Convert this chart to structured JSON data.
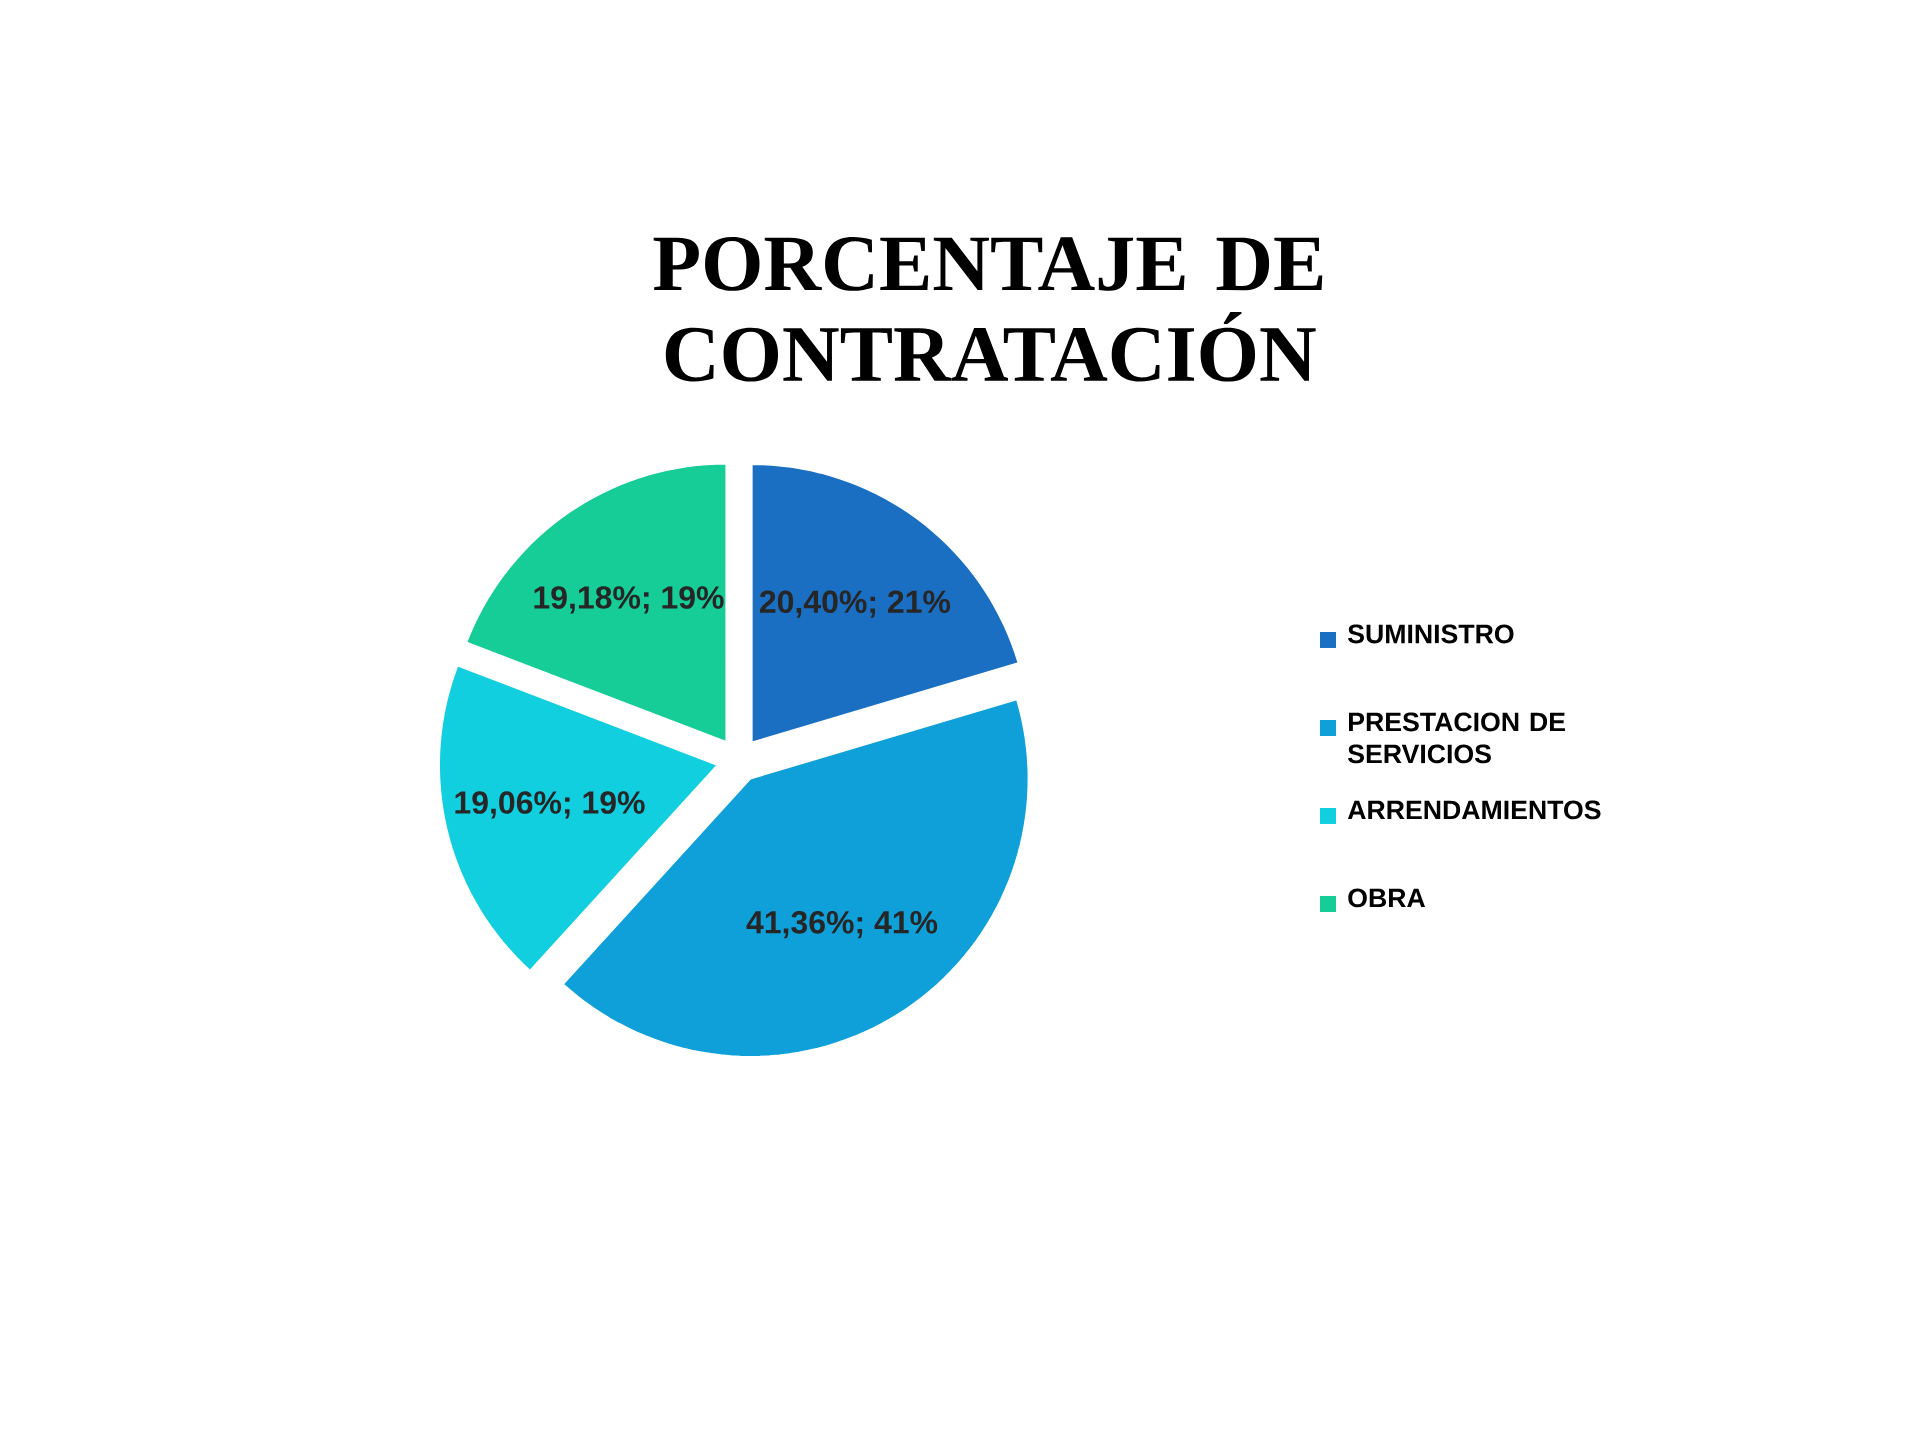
{
  "chart_data": {
    "type": "pie",
    "title": "PORCENTAJE DE CONTRATACIÓN",
    "categories": [
      "SUMINISTRO",
      "PRESTACION DE SERVICIOS",
      "ARRENDAMIENTOS",
      "OBRA"
    ],
    "values": [
      20.4,
      41.36,
      19.06,
      19.18
    ],
    "value_labels": [
      "20,40%; 21%",
      "41,36%; 41%",
      "19,06%; 19%",
      "19,18%; 19%"
    ],
    "colors": [
      "#1b6fc2",
      "#0fa0d9",
      "#12cfe0",
      "#16cc97"
    ],
    "legend": "right"
  }
}
